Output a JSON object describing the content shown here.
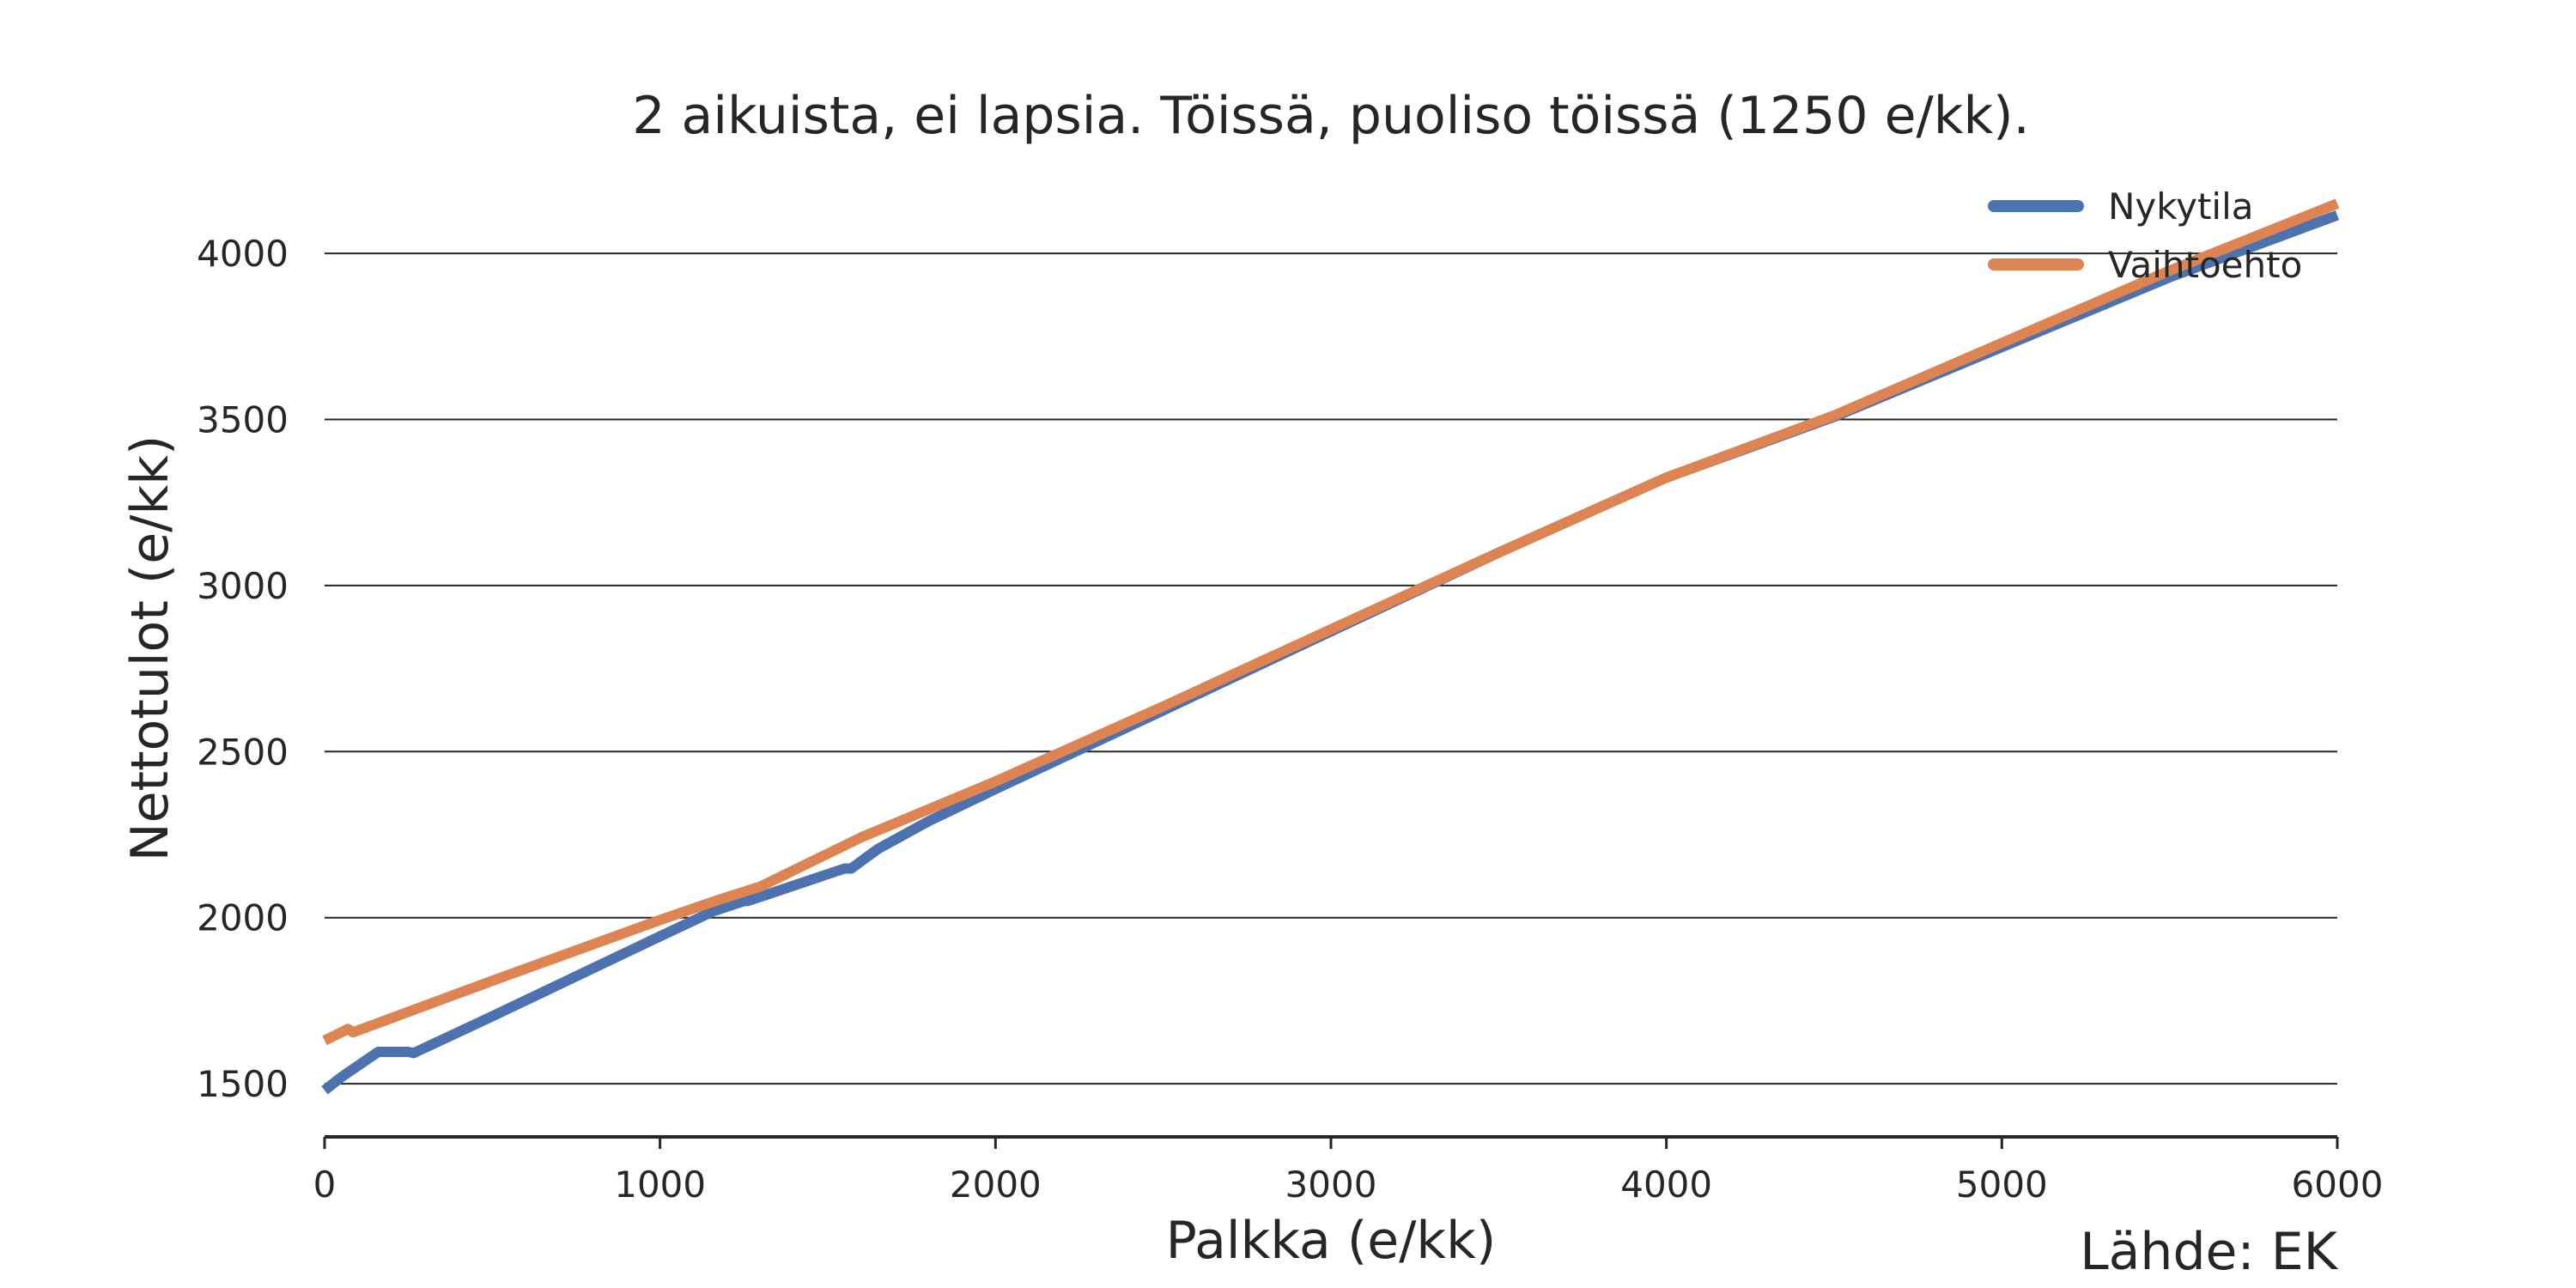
{
  "chart_data": {
    "type": "line",
    "title": "2 aikuista, ei lapsia. Töissä, puoliso töissä (1250 e/kk).",
    "xlabel": "Palkka (e/kk)",
    "ylabel": "Nettotulot (e/kk)",
    "source": "Lähde: EK",
    "xlim": [
      0,
      6000
    ],
    "ylim": [
      1340,
      4220
    ],
    "xticks": [
      0,
      1000,
      2000,
      3000,
      4000,
      5000,
      6000
    ],
    "yticks": [
      1500,
      2000,
      2500,
      3000,
      3500,
      4000
    ],
    "grid": "horizontal",
    "legend_position": "top-right",
    "series": [
      {
        "name": "Nykytila",
        "color": "#4c72b0",
        "points": [
          [
            0,
            1480
          ],
          [
            50,
            1520
          ],
          [
            160,
            1596
          ],
          [
            250,
            1596
          ],
          [
            265,
            1592
          ],
          [
            500,
            1703
          ],
          [
            1000,
            1944
          ],
          [
            1160,
            2020
          ],
          [
            1250,
            2050
          ],
          [
            1260,
            2050
          ],
          [
            1300,
            2063
          ],
          [
            1550,
            2148
          ],
          [
            1570,
            2148
          ],
          [
            1650,
            2207
          ],
          [
            1800,
            2290
          ],
          [
            2000,
            2387
          ],
          [
            2500,
            2624
          ],
          [
            3000,
            2862
          ],
          [
            3500,
            3099
          ],
          [
            4000,
            3325
          ],
          [
            4500,
            3508
          ],
          [
            5000,
            3718
          ],
          [
            5500,
            3928
          ],
          [
            6000,
            4115
          ]
        ]
      },
      {
        "name": "Vaihtoehto",
        "color": "#dd8452",
        "points": [
          [
            0,
            1630
          ],
          [
            50,
            1655
          ],
          [
            70,
            1665
          ],
          [
            85,
            1655
          ],
          [
            500,
            1810
          ],
          [
            1000,
            1993
          ],
          [
            1170,
            2052
          ],
          [
            1300,
            2094
          ],
          [
            1600,
            2242
          ],
          [
            2000,
            2410
          ],
          [
            2500,
            2636
          ],
          [
            3000,
            2868
          ],
          [
            3500,
            3099
          ],
          [
            4000,
            3325
          ],
          [
            4500,
            3512
          ],
          [
            5000,
            3730
          ],
          [
            5500,
            3948
          ],
          [
            6000,
            4150
          ]
        ]
      }
    ]
  }
}
